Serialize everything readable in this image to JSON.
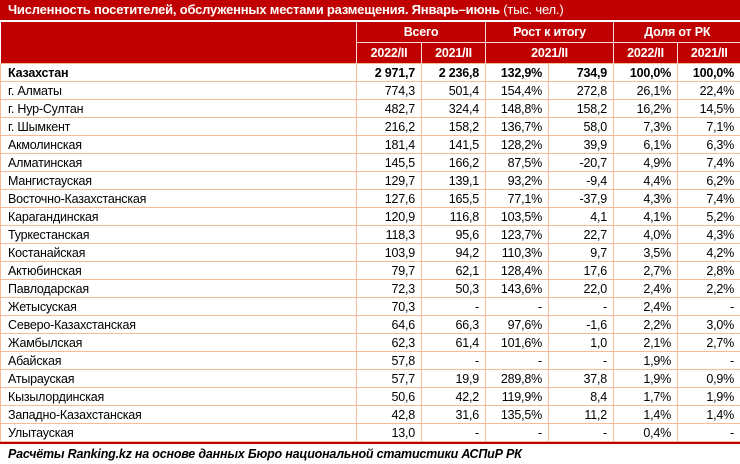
{
  "colors": {
    "accent_red": "#C00000",
    "grid_peach": "#F4BD97",
    "header_text": "#FFFFFF",
    "body_text": "#000000"
  },
  "chart_data": {
    "type": "table",
    "title_main": "Численность посетителей, обслуженных местами размещения. Январь–июнь",
    "title_unit": " (тыс. чел.)",
    "header": {
      "groups": [
        {
          "label": "Всего",
          "span": 2
        },
        {
          "label": "Рост к итогу",
          "span": 2
        },
        {
          "label": "Доля от РК",
          "span": 2
        }
      ],
      "subcolumns": {
        "total_2022": "2022/II",
        "total_2021": "2021/II",
        "growth_2021": "2021/II",
        "share_2022": "2022/II",
        "share_2021": "2021/II"
      }
    },
    "rows": [
      {
        "name": "Казахстан",
        "bold": true,
        "values": [
          "2 971,7",
          "2 236,8",
          "132,9%",
          "734,9",
          "100,0%",
          "100,0%"
        ]
      },
      {
        "name": "г. Алматы",
        "bold": false,
        "values": [
          "774,3",
          "501,4",
          "154,4%",
          "272,8",
          "26,1%",
          "22,4%"
        ]
      },
      {
        "name": "г. Нур-Султан",
        "bold": false,
        "values": [
          "482,7",
          "324,4",
          "148,8%",
          "158,2",
          "16,2%",
          "14,5%"
        ]
      },
      {
        "name": "г. Шымкент",
        "bold": false,
        "values": [
          "216,2",
          "158,2",
          "136,7%",
          "58,0",
          "7,3%",
          "7,1%"
        ]
      },
      {
        "name": "Акмолинская",
        "bold": false,
        "values": [
          "181,4",
          "141,5",
          "128,2%",
          "39,9",
          "6,1%",
          "6,3%"
        ]
      },
      {
        "name": "Алматинская",
        "bold": false,
        "values": [
          "145,5",
          "166,2",
          "87,5%",
          "-20,7",
          "4,9%",
          "7,4%"
        ]
      },
      {
        "name": "Мангистауская",
        "bold": false,
        "values": [
          "129,7",
          "139,1",
          "93,2%",
          "-9,4",
          "4,4%",
          "6,2%"
        ]
      },
      {
        "name": "Восточно-Казахстанская",
        "bold": false,
        "values": [
          "127,6",
          "165,5",
          "77,1%",
          "-37,9",
          "4,3%",
          "7,4%"
        ]
      },
      {
        "name": "Карагандинская",
        "bold": false,
        "values": [
          "120,9",
          "116,8",
          "103,5%",
          "4,1",
          "4,1%",
          "5,2%"
        ]
      },
      {
        "name": "Туркестанская",
        "bold": false,
        "values": [
          "118,3",
          "95,6",
          "123,7%",
          "22,7",
          "4,0%",
          "4,3%"
        ]
      },
      {
        "name": "Костанайская",
        "bold": false,
        "values": [
          "103,9",
          "94,2",
          "110,3%",
          "9,7",
          "3,5%",
          "4,2%"
        ]
      },
      {
        "name": "Актюбинская",
        "bold": false,
        "values": [
          "79,7",
          "62,1",
          "128,4%",
          "17,6",
          "2,7%",
          "2,8%"
        ]
      },
      {
        "name": "Павлодарская",
        "bold": false,
        "values": [
          "72,3",
          "50,3",
          "143,6%",
          "22,0",
          "2,4%",
          "2,2%"
        ]
      },
      {
        "name": "Жетысуская",
        "bold": false,
        "values": [
          "70,3",
          "-",
          "-",
          "-",
          "2,4%",
          "-"
        ]
      },
      {
        "name": "Северо-Казахстанская",
        "bold": false,
        "values": [
          "64,6",
          "66,3",
          "97,6%",
          "-1,6",
          "2,2%",
          "3,0%"
        ]
      },
      {
        "name": "Жамбылская",
        "bold": false,
        "values": [
          "62,3",
          "61,4",
          "101,6%",
          "1,0",
          "2,1%",
          "2,7%"
        ]
      },
      {
        "name": "Абайская",
        "bold": false,
        "values": [
          "57,8",
          "-",
          "-",
          "-",
          "1,9%",
          "-"
        ]
      },
      {
        "name": "Атырауская",
        "bold": false,
        "values": [
          "57,7",
          "19,9",
          "289,8%",
          "37,8",
          "1,9%",
          "0,9%"
        ]
      },
      {
        "name": "Кызылординская",
        "bold": false,
        "values": [
          "50,6",
          "42,2",
          "119,9%",
          "8,4",
          "1,7%",
          "1,9%"
        ]
      },
      {
        "name": "Западно-Казахстанская",
        "bold": false,
        "values": [
          "42,8",
          "31,6",
          "135,5%",
          "11,2",
          "1,4%",
          "1,4%"
        ]
      },
      {
        "name": "Улытауская",
        "bold": false,
        "values": [
          "13,0",
          "-",
          "-",
          "-",
          "0,4%",
          "-"
        ]
      }
    ],
    "footer": "Расчёты Ranking.kz на основе данных Бюро национальной статистики АСПиР РК"
  }
}
